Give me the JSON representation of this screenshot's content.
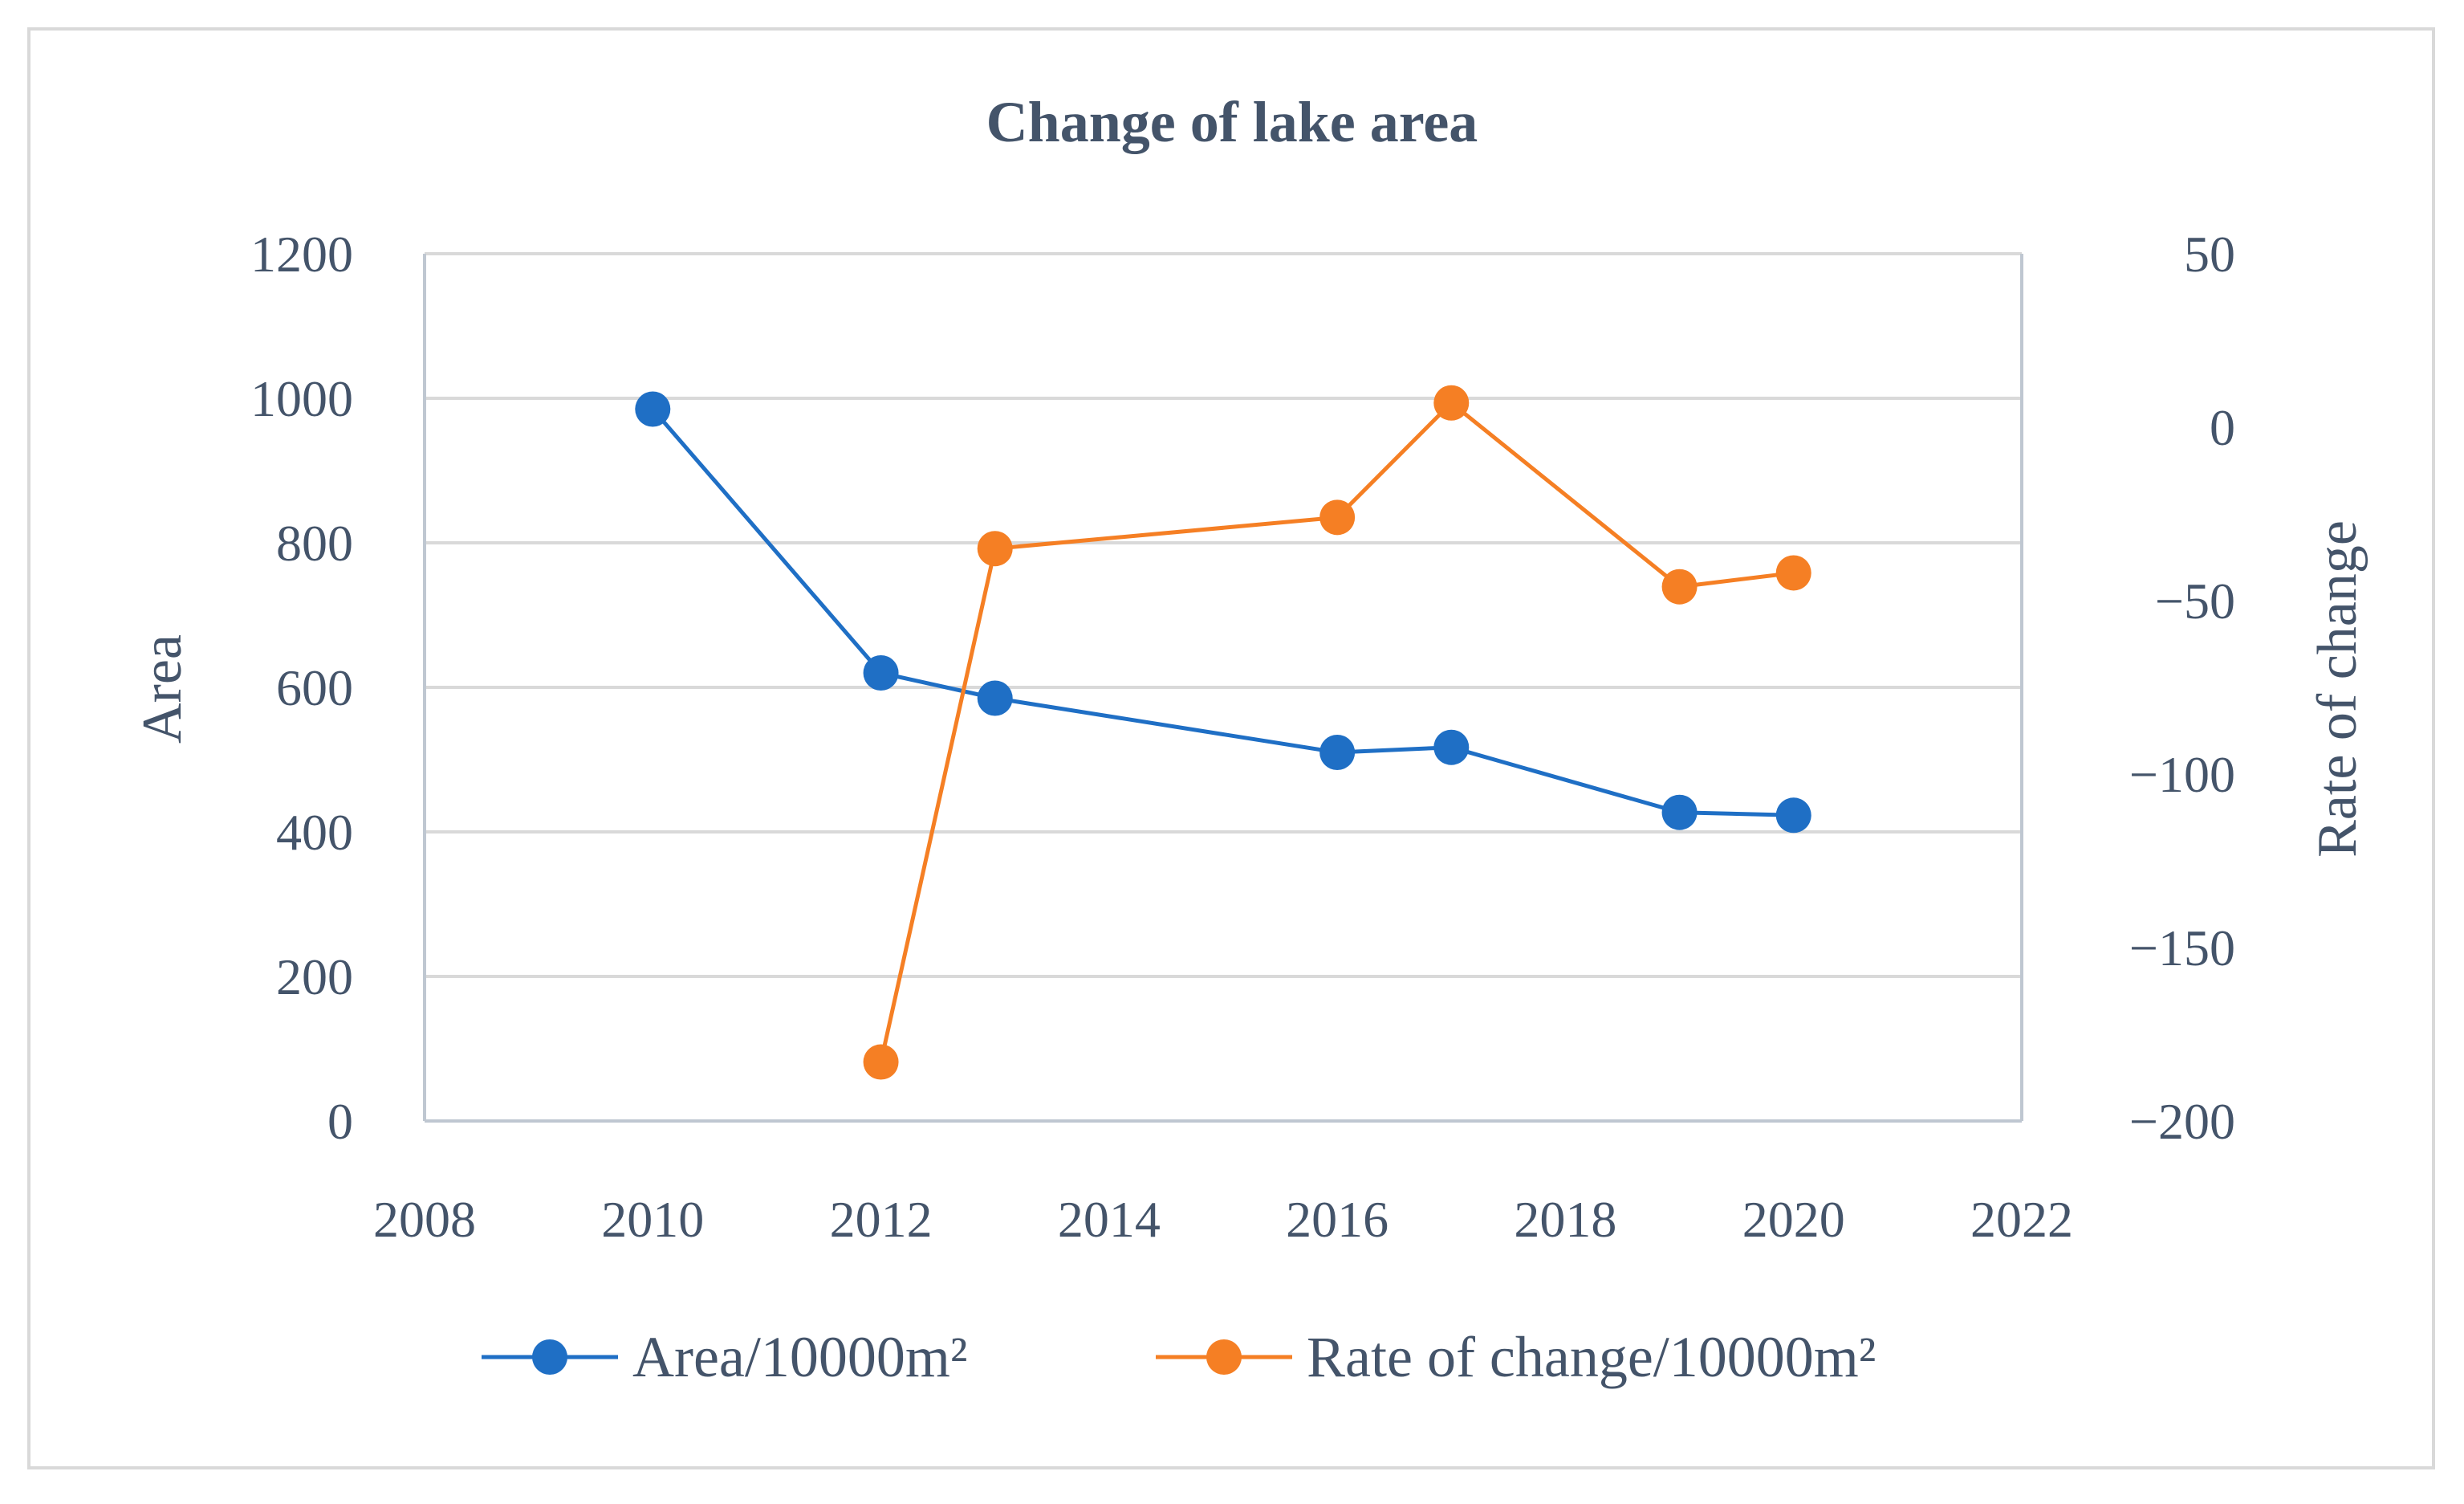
{
  "chart_data": {
    "type": "line",
    "title": "Change of lake area",
    "xlabel": "",
    "ylabel": "Area",
    "y2label": "Rate of change",
    "xlim": [
      2008,
      2022
    ],
    "x_ticks": [
      "2008",
      "2010",
      "2012",
      "2014",
      "2016",
      "2018",
      "2020",
      "2022"
    ],
    "ylim": [
      0,
      1200
    ],
    "y_ticks": [
      "0",
      "200",
      "400",
      "600",
      "800",
      "1000",
      "1200"
    ],
    "y2lim": [
      -200,
      50
    ],
    "y2_ticks": [
      "−200",
      "−150",
      "−100",
      "−50",
      "0",
      "50"
    ],
    "grid": true,
    "legend_position": "bottom",
    "series": [
      {
        "name": "Area/10000m²",
        "axis": "left",
        "color": "#1f6fc5",
        "points": [
          {
            "x": 2010,
            "y": 985
          },
          {
            "x": 2012,
            "y": 620
          },
          {
            "x": 2013,
            "y": 585
          },
          {
            "x": 2016,
            "y": 510
          },
          {
            "x": 2017,
            "y": 517
          },
          {
            "x": 2019,
            "y": 427
          },
          {
            "x": 2020,
            "y": 423
          }
        ]
      },
      {
        "name": "Rate of change/10000m²",
        "axis": "right",
        "color": "#f57f24",
        "points": [
          {
            "x": 2012,
            "y": -183
          },
          {
            "x": 2013,
            "y": -35
          },
          {
            "x": 2016,
            "y": -26
          },
          {
            "x": 2017,
            "y": 7
          },
          {
            "x": 2019,
            "y": -46
          },
          {
            "x": 2020,
            "y": -42
          }
        ]
      }
    ]
  }
}
